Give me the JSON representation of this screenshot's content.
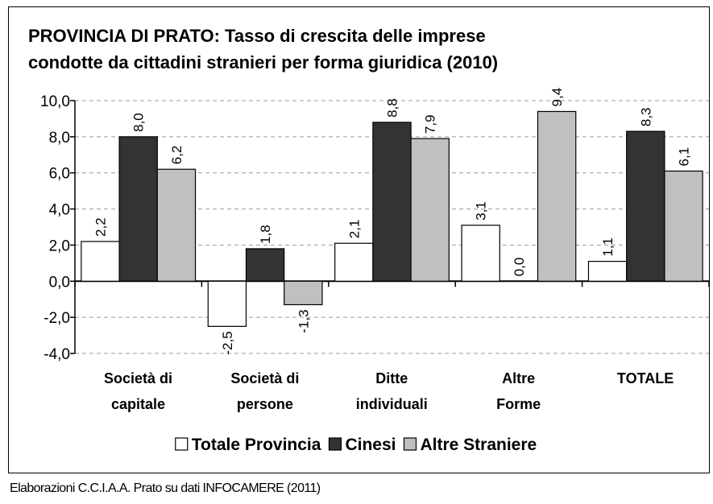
{
  "chart_data": {
    "type": "bar",
    "title": "PROVINCIA DI PRATO: Tasso di crescita delle imprese\ncondotte da cittadini stranieri per forma giuridica (2010)",
    "source": "Elaborazioni C.C.I.A.A. Prato su dati INFOCAMERE (2011)",
    "categories": [
      "Società di\ncapitale",
      "Società di\npersone",
      "Ditte\nindividuali",
      "Altre\nForme",
      "TOTALE"
    ],
    "series": [
      {
        "name": "Totale Provincia",
        "color": "#ffffff",
        "values": [
          2.2,
          -2.5,
          2.1,
          3.1,
          1.1
        ],
        "value_labels": [
          "2,2",
          "-2,5",
          "2,1",
          "3,1",
          "1,1"
        ]
      },
      {
        "name": "Cinesi",
        "color": "#333333",
        "values": [
          8.0,
          1.8,
          8.8,
          0.0,
          8.3
        ],
        "value_labels": [
          "8,0",
          "1,8",
          "8,8",
          "0,0",
          "8,3"
        ]
      },
      {
        "name": "Altre Straniere",
        "color": "#c0c0c0",
        "values": [
          6.2,
          -1.3,
          7.9,
          9.4,
          6.1
        ],
        "value_labels": [
          "6,2",
          "-1,3",
          "7,9",
          "9,4",
          "6,1"
        ]
      }
    ],
    "ylim": [
      -4,
      10
    ],
    "yticks": [
      {
        "value": -4,
        "label": "-4,0"
      },
      {
        "value": -2,
        "label": "-2,0"
      },
      {
        "value": 0,
        "label": "0,0"
      },
      {
        "value": 2,
        "label": "2,0"
      },
      {
        "value": 4,
        "label": "4,0"
      },
      {
        "value": 6,
        "label": "6,0"
      },
      {
        "value": 8,
        "label": "8,0"
      },
      {
        "value": 10,
        "label": "10,0"
      }
    ],
    "grid": true,
    "legend": "bottom"
  }
}
